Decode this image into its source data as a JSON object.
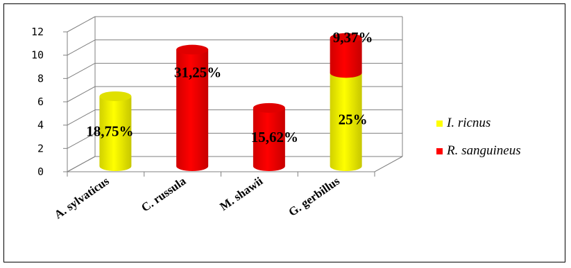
{
  "chart_data": {
    "type": "bar",
    "style": "3d-stacked-cylinder",
    "title": "",
    "xlabel": "",
    "ylabel": "",
    "ylim": [
      0,
      12
    ],
    "yticks": [
      0,
      2,
      4,
      6,
      8,
      10,
      12
    ],
    "grid": true,
    "legend_position": "right",
    "categories": [
      "A. sylvaticus",
      "C. russula",
      "M. shawii",
      "G. gerbillus"
    ],
    "series": [
      {
        "name": "I. ricnus",
        "color": "#ffff00",
        "values": [
          6,
          0,
          0,
          8
        ],
        "labels": [
          "18,75%",
          "",
          "",
          "25%"
        ]
      },
      {
        "name": "R. sanguineus",
        "color": "#ff0000",
        "values": [
          0,
          10,
          5,
          3
        ],
        "labels": [
          "",
          "31,25%",
          "15,62%",
          "9,37%"
        ]
      }
    ]
  }
}
